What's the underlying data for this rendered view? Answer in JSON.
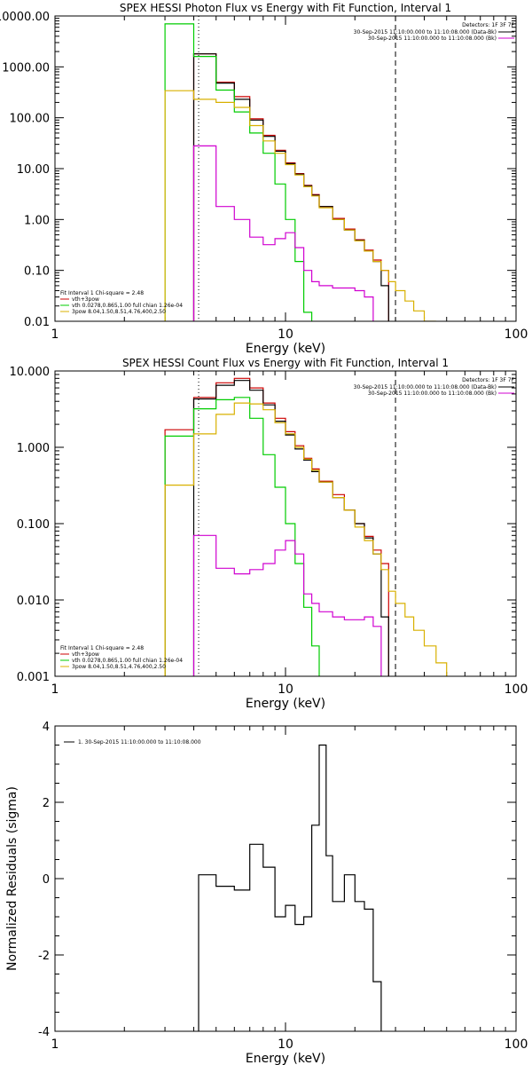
{
  "chart_data": [
    {
      "type": "line",
      "title": "SPEX HESSI Photon Flux vs Energy with Fit Function, Interval 1",
      "xlabel": "Energy (keV)",
      "ylabel": "",
      "xscale": "log",
      "yscale": "log",
      "xlim": [
        1,
        100
      ],
      "ylim": [
        0.01,
        10000
      ],
      "x_ticks": [
        {
          "value": 1,
          "label": "1"
        },
        {
          "value": 10,
          "label": "10"
        },
        {
          "value": 100,
          "label": "100"
        }
      ],
      "y_ticks": [
        {
          "value": 0.01,
          "label": "0.01"
        },
        {
          "value": 0.1,
          "label": "0.10"
        },
        {
          "value": 1,
          "label": "1.00"
        },
        {
          "value": 10,
          "label": "10.00"
        },
        {
          "value": 100,
          "label": "100.00"
        },
        {
          "value": 1000,
          "label": "1000.00"
        },
        {
          "value": 10000,
          "label": "10000.00"
        }
      ],
      "legend_top_right": {
        "title": "Detectors: 1F 3F 7F",
        "entries": [
          {
            "text": "30-Sep-2015 11:10:00.000 to 11:10:08.000 (Data-Bk)",
            "color": "#000000"
          },
          {
            "text": "30-Sep-2015 11:10:00.000 to 11:10:08.000 (Bk)",
            "color": "#d000d0"
          }
        ]
      },
      "legend_bottom_left": {
        "title": "Fit Interval 1   Chi-square = 2.48",
        "entries": [
          {
            "text": "vth+3pow",
            "color": "#cc0000"
          },
          {
            "text": "vth 0.0278,0.865,1.00  full chian 1.26e-04",
            "color": "#00cc00"
          },
          {
            "text": "3pow 8.04,1.50,8.51,4.76,400,2.50",
            "color": "#d8b000"
          }
        ]
      },
      "vlines": [
        {
          "x": 4.2,
          "color": "#000000",
          "style": "dotted"
        },
        {
          "x": 30,
          "color": "#000000",
          "style": "dashed"
        }
      ],
      "edges": [
        3,
        4,
        5,
        6,
        7,
        8,
        9,
        10,
        11,
        12,
        13,
        14,
        16,
        18,
        20,
        22,
        24,
        26,
        28,
        30,
        33,
        36,
        40,
        45,
        50,
        55
      ],
      "series": [
        {
          "name": "vth+3pow",
          "color": "#cc0000",
          "values": [
            null,
            1800,
            500,
            260,
            95,
            45,
            23,
            13,
            8,
            4.7,
            3.1,
            1.8,
            1.05,
            0.65,
            0.4,
            0.25,
            0.16,
            0.1,
            null,
            null,
            null,
            null,
            null,
            null,
            null
          ]
        },
        {
          "name": "Data-Bk",
          "color": "#000000",
          "values": [
            null,
            1800,
            480,
            230,
            90,
            43,
            22,
            12.5,
            7.8,
            4.6,
            3.0,
            1.8,
            1.0,
            0.62,
            0.39,
            0.24,
            0.15,
            0.05,
            null,
            null,
            null,
            null,
            null,
            null,
            null
          ]
        },
        {
          "name": "vth",
          "color": "#00cc00",
          "values": [
            7000,
            1600,
            350,
            130,
            50,
            20,
            5,
            1,
            0.15,
            0.015,
            null,
            null,
            null,
            null,
            null,
            null,
            null,
            null,
            null,
            null,
            null,
            null,
            null,
            null,
            null
          ]
        },
        {
          "name": "3pow",
          "color": "#d8b000",
          "values": [
            340,
            230,
            200,
            160,
            70,
            35,
            20,
            12,
            7.5,
            4.4,
            2.9,
            1.7,
            1.0,
            0.62,
            0.38,
            0.24,
            0.15,
            0.1,
            0.06,
            0.04,
            0.025,
            0.016,
            0.01,
            null,
            null
          ]
        },
        {
          "name": "Bk",
          "color": "#d000d0",
          "values": [
            null,
            28,
            1.8,
            1.0,
            0.45,
            0.32,
            0.42,
            0.55,
            0.28,
            0.1,
            0.06,
            0.05,
            0.045,
            0.045,
            0.04,
            0.03,
            null,
            null,
            null,
            null,
            null,
            null,
            null,
            null,
            null
          ]
        }
      ]
    },
    {
      "type": "line",
      "title": "SPEX HESSI Count Flux vs Energy with Fit Function, Interval 1",
      "xlabel": "Energy (keV)",
      "ylabel": "",
      "xscale": "log",
      "yscale": "log",
      "xlim": [
        1,
        100
      ],
      "ylim": [
        0.001,
        10
      ],
      "x_ticks": [
        {
          "value": 1,
          "label": "1"
        },
        {
          "value": 10,
          "label": "10"
        },
        {
          "value": 100,
          "label": "100"
        }
      ],
      "y_ticks": [
        {
          "value": 0.001,
          "label": "0.001"
        },
        {
          "value": 0.01,
          "label": "0.010"
        },
        {
          "value": 0.1,
          "label": "0.100"
        },
        {
          "value": 1,
          "label": "1.000"
        },
        {
          "value": 10,
          "label": "10.000"
        }
      ],
      "legend_top_right": {
        "title": "Detectors: 1F 3F 7F",
        "entries": [
          {
            "text": "30-Sep-2015 11:10:00.000 to 11:10:08.000 (Data-Bk)",
            "color": "#000000"
          },
          {
            "text": "30-Sep-2015 11:10:00.000 to 11:10:08.000 (Bk)",
            "color": "#d000d0"
          }
        ]
      },
      "legend_bottom_left": {
        "title": "Fit Interval 1   Chi-square = 2.48",
        "entries": [
          {
            "text": "vth+3pow",
            "color": "#cc0000"
          },
          {
            "text": "vth 0.0278,0.865,1.00  full chian 1.26e-04",
            "color": "#00cc00"
          },
          {
            "text": "3pow 8.04,1.50,8.51,4.76,400,2.50",
            "color": "#d8b000"
          }
        ]
      },
      "vlines": [
        {
          "x": 4.2,
          "color": "#000000",
          "style": "dotted"
        },
        {
          "x": 30,
          "color": "#000000",
          "style": "dashed"
        }
      ],
      "edges": [
        3,
        4,
        5,
        6,
        7,
        8,
        9,
        10,
        11,
        12,
        13,
        14,
        16,
        18,
        20,
        22,
        24,
        26,
        28,
        30,
        33,
        36,
        40,
        45,
        50,
        55
      ],
      "series": [
        {
          "name": "vth+3pow",
          "color": "#cc0000",
          "values": [
            1.7,
            4.5,
            7.0,
            8.0,
            6.0,
            3.8,
            2.4,
            1.6,
            1.05,
            0.72,
            0.52,
            0.36,
            0.24,
            0.15,
            0.1,
            0.068,
            0.045,
            0.03,
            null,
            null,
            null,
            null,
            null,
            null,
            null
          ]
        },
        {
          "name": "Data-Bk",
          "color": "#000000",
          "values": [
            null,
            4.3,
            6.5,
            7.5,
            5.6,
            3.6,
            2.2,
            1.45,
            0.95,
            0.68,
            0.48,
            0.35,
            0.22,
            0.15,
            0.1,
            0.065,
            0.04,
            0.006,
            null,
            null,
            null,
            null,
            null,
            null,
            null
          ]
        },
        {
          "name": "vth",
          "color": "#00cc00",
          "values": [
            1.4,
            3.2,
            4.2,
            4.5,
            2.4,
            0.8,
            0.3,
            0.1,
            0.03,
            0.008,
            0.0025,
            null,
            null,
            null,
            null,
            null,
            null,
            null,
            null,
            null,
            null,
            null,
            null,
            null,
            null
          ]
        },
        {
          "name": "3pow",
          "color": "#d8b000",
          "values": [
            0.32,
            1.5,
            2.7,
            3.8,
            3.7,
            3.1,
            2.1,
            1.5,
            1.0,
            0.7,
            0.5,
            0.35,
            0.22,
            0.15,
            0.09,
            0.06,
            0.04,
            0.025,
            0.013,
            0.009,
            0.006,
            0.004,
            0.0025,
            0.0015,
            null
          ]
        },
        {
          "name": "Bk",
          "color": "#d000d0",
          "values": [
            null,
            0.07,
            0.026,
            0.022,
            0.025,
            0.03,
            0.045,
            0.06,
            0.04,
            0.012,
            0.009,
            0.007,
            0.006,
            0.0055,
            0.0055,
            0.006,
            0.0045,
            null,
            null,
            null,
            null,
            null,
            null,
            null,
            null
          ]
        }
      ]
    },
    {
      "type": "line",
      "title": "",
      "xlabel": "Energy (keV)",
      "ylabel": "Normalized Residuals (sigma)",
      "xscale": "log",
      "yscale": "linear",
      "xlim": [
        1,
        100
      ],
      "ylim": [
        -4,
        4
      ],
      "x_ticks": [
        {
          "value": 1,
          "label": "1"
        },
        {
          "value": 10,
          "label": "10"
        },
        {
          "value": 100,
          "label": "100"
        }
      ],
      "y_ticks": [
        {
          "value": -4,
          "label": "-4"
        },
        {
          "value": -2,
          "label": "-2"
        },
        {
          "value": 0,
          "label": "0"
        },
        {
          "value": 2,
          "label": "2"
        },
        {
          "value": 4,
          "label": "4"
        }
      ],
      "legend": [
        {
          "text": "1. 30-Sep-2015 11:10:00.000 to 11:10:08.000",
          "color": "#000000"
        }
      ],
      "edges": [
        4.2,
        5,
        6,
        7,
        8,
        9,
        10,
        11,
        12,
        13,
        14,
        15,
        16,
        18,
        20,
        22,
        24,
        26,
        28,
        30
      ],
      "series": [
        {
          "name": "1. 30-Sep-2015 11:10:00.000 to 11:10:08.000",
          "color": "#000000",
          "values": [
            0.1,
            -0.2,
            -0.3,
            0.9,
            0.3,
            -1.0,
            -0.7,
            -1.2,
            -1.0,
            1.4,
            3.5,
            0.6,
            -0.6,
            0.1,
            -0.6,
            -0.8,
            -2.7,
            null,
            null
          ]
        }
      ]
    }
  ]
}
